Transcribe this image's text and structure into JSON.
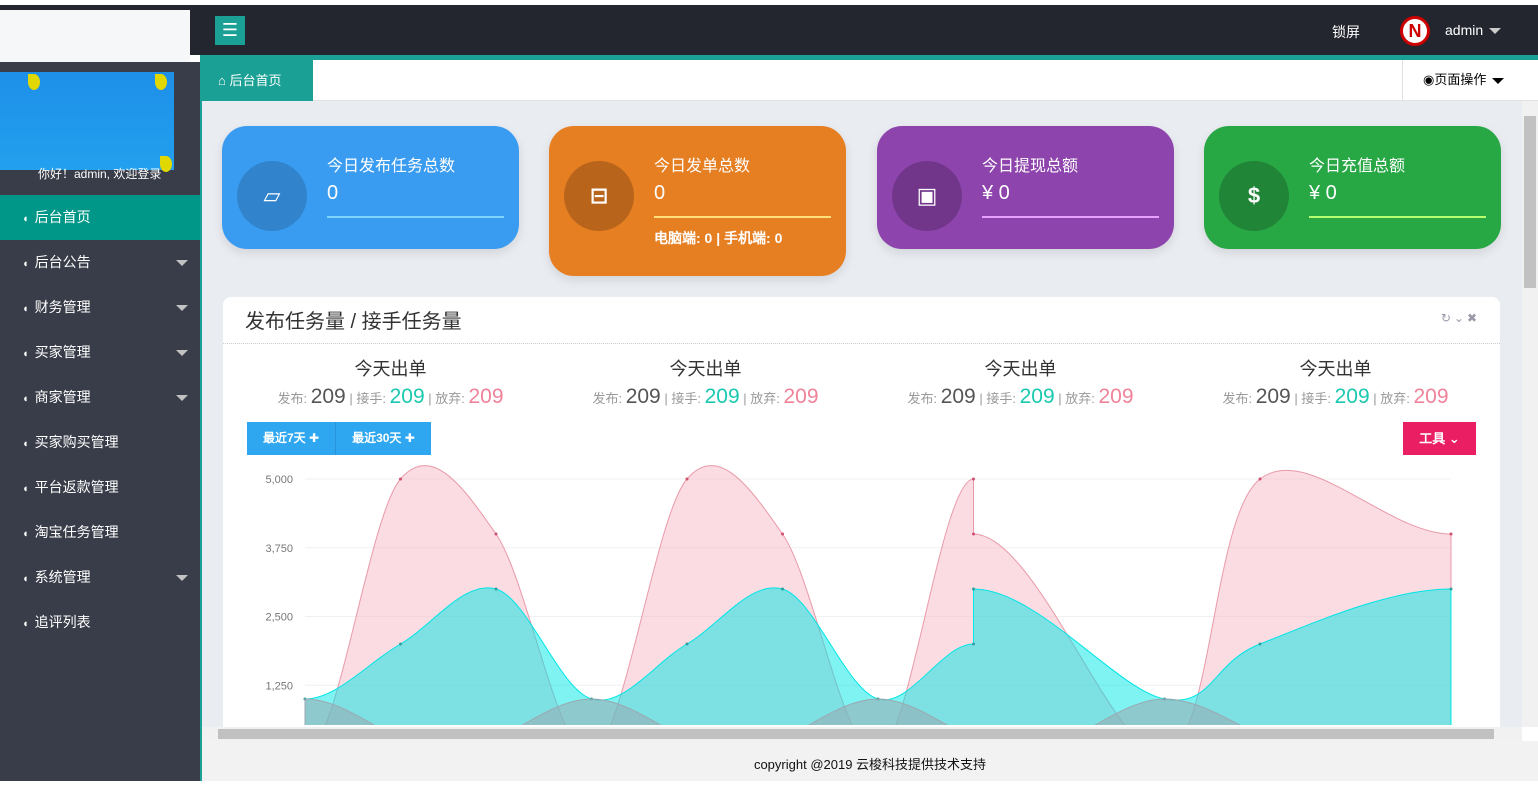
{
  "header": {
    "lock_label": "锁屏",
    "user": "admin",
    "avatar_letter": "N",
    "menu_icon": "hamburger-icon"
  },
  "sidebar": {
    "welcome": "你好！admin, 欢迎登录",
    "items": [
      {
        "label": "后台首页",
        "active": true
      },
      {
        "label": "后台公告",
        "dropdown": true
      },
      {
        "label": "财务管理",
        "dropdown": true
      },
      {
        "label": "买家管理",
        "dropdown": true
      },
      {
        "label": "商家管理",
        "dropdown": true
      },
      {
        "label": "买家购买管理"
      },
      {
        "label": "平台返款管理"
      },
      {
        "label": "淘宝任务管理"
      },
      {
        "label": "系统管理",
        "dropdown": true
      },
      {
        "label": "追评列表"
      }
    ]
  },
  "tabs": {
    "home": "后台首页",
    "page_ops": "页面操作"
  },
  "cards": [
    {
      "title": "今日发布任务总数",
      "value": "0",
      "color": "#3a9cf0",
      "icon": "cards-icon"
    },
    {
      "title": "今日发单总数",
      "value": "0",
      "sub": "电脑端: 0 | 手机端: 0",
      "color": "#e67e22",
      "icon": "briefcase-icon"
    },
    {
      "title": "今日提现总额",
      "value": "¥ 0",
      "color": "#8e44ad",
      "icon": "money-bill-icon"
    },
    {
      "title": "今日充值总额",
      "value": "¥ 0",
      "color": "#28a745",
      "icon": "dollar-icon"
    }
  ],
  "panel": {
    "title": "发布任务量 / 接手任务量",
    "stats": [
      {
        "heading": "今天出单",
        "publish_label": "发布:",
        "publish": "209",
        "accept_label": "接手:",
        "accept": "209",
        "abandon_label": "放弃:",
        "abandon": "209"
      },
      {
        "heading": "今天出单",
        "publish_label": "发布:",
        "publish": "209",
        "accept_label": "接手:",
        "accept": "209",
        "abandon_label": "放弃:",
        "abandon": "209"
      },
      {
        "heading": "今天出单",
        "publish_label": "发布:",
        "publish": "209",
        "accept_label": "接手:",
        "accept": "209",
        "abandon_label": "放弃:",
        "abandon": "209"
      },
      {
        "heading": "今天出单",
        "publish_label": "发布:",
        "publish": "209",
        "accept_label": "接手:",
        "accept": "209",
        "abandon_label": "放弃:",
        "abandon": "209"
      }
    ],
    "btn_7": "最近7天 ✚",
    "btn_30": "最近30天 ✚",
    "tools": "工具 ⌄"
  },
  "chart_data": {
    "type": "area",
    "ylim": [
      0,
      5000
    ],
    "yticks": [
      "5,000",
      "3,750",
      "2,500",
      "1,250"
    ],
    "grid": true,
    "series": [
      {
        "color": "#f6c0cb",
        "x": [
          0,
          1,
          2,
          3,
          4,
          5,
          6,
          7,
          7,
          9,
          10,
          12
        ],
        "values": [
          0,
          5000,
          4000,
          0,
          5000,
          4000,
          0,
          5000,
          4000,
          0,
          5000,
          4000
        ]
      },
      {
        "color": "#00e5e5",
        "x": [
          0,
          1,
          2,
          3,
          4,
          5,
          6,
          7,
          7,
          9,
          10,
          12
        ],
        "values": [
          1000,
          2000,
          3000,
          1000,
          2000,
          3000,
          1000,
          2000,
          3000,
          1000,
          2000,
          3000
        ]
      },
      {
        "color": "#9aa8b0",
        "x": [
          0,
          1.5,
          3,
          4.5,
          6,
          7.5,
          9,
          10.5,
          12
        ],
        "values": [
          1000,
          0,
          1000,
          0,
          1000,
          0,
          1000,
          0,
          0
        ]
      }
    ]
  },
  "footer": "copyright @2019 云梭科技提供技术支持"
}
